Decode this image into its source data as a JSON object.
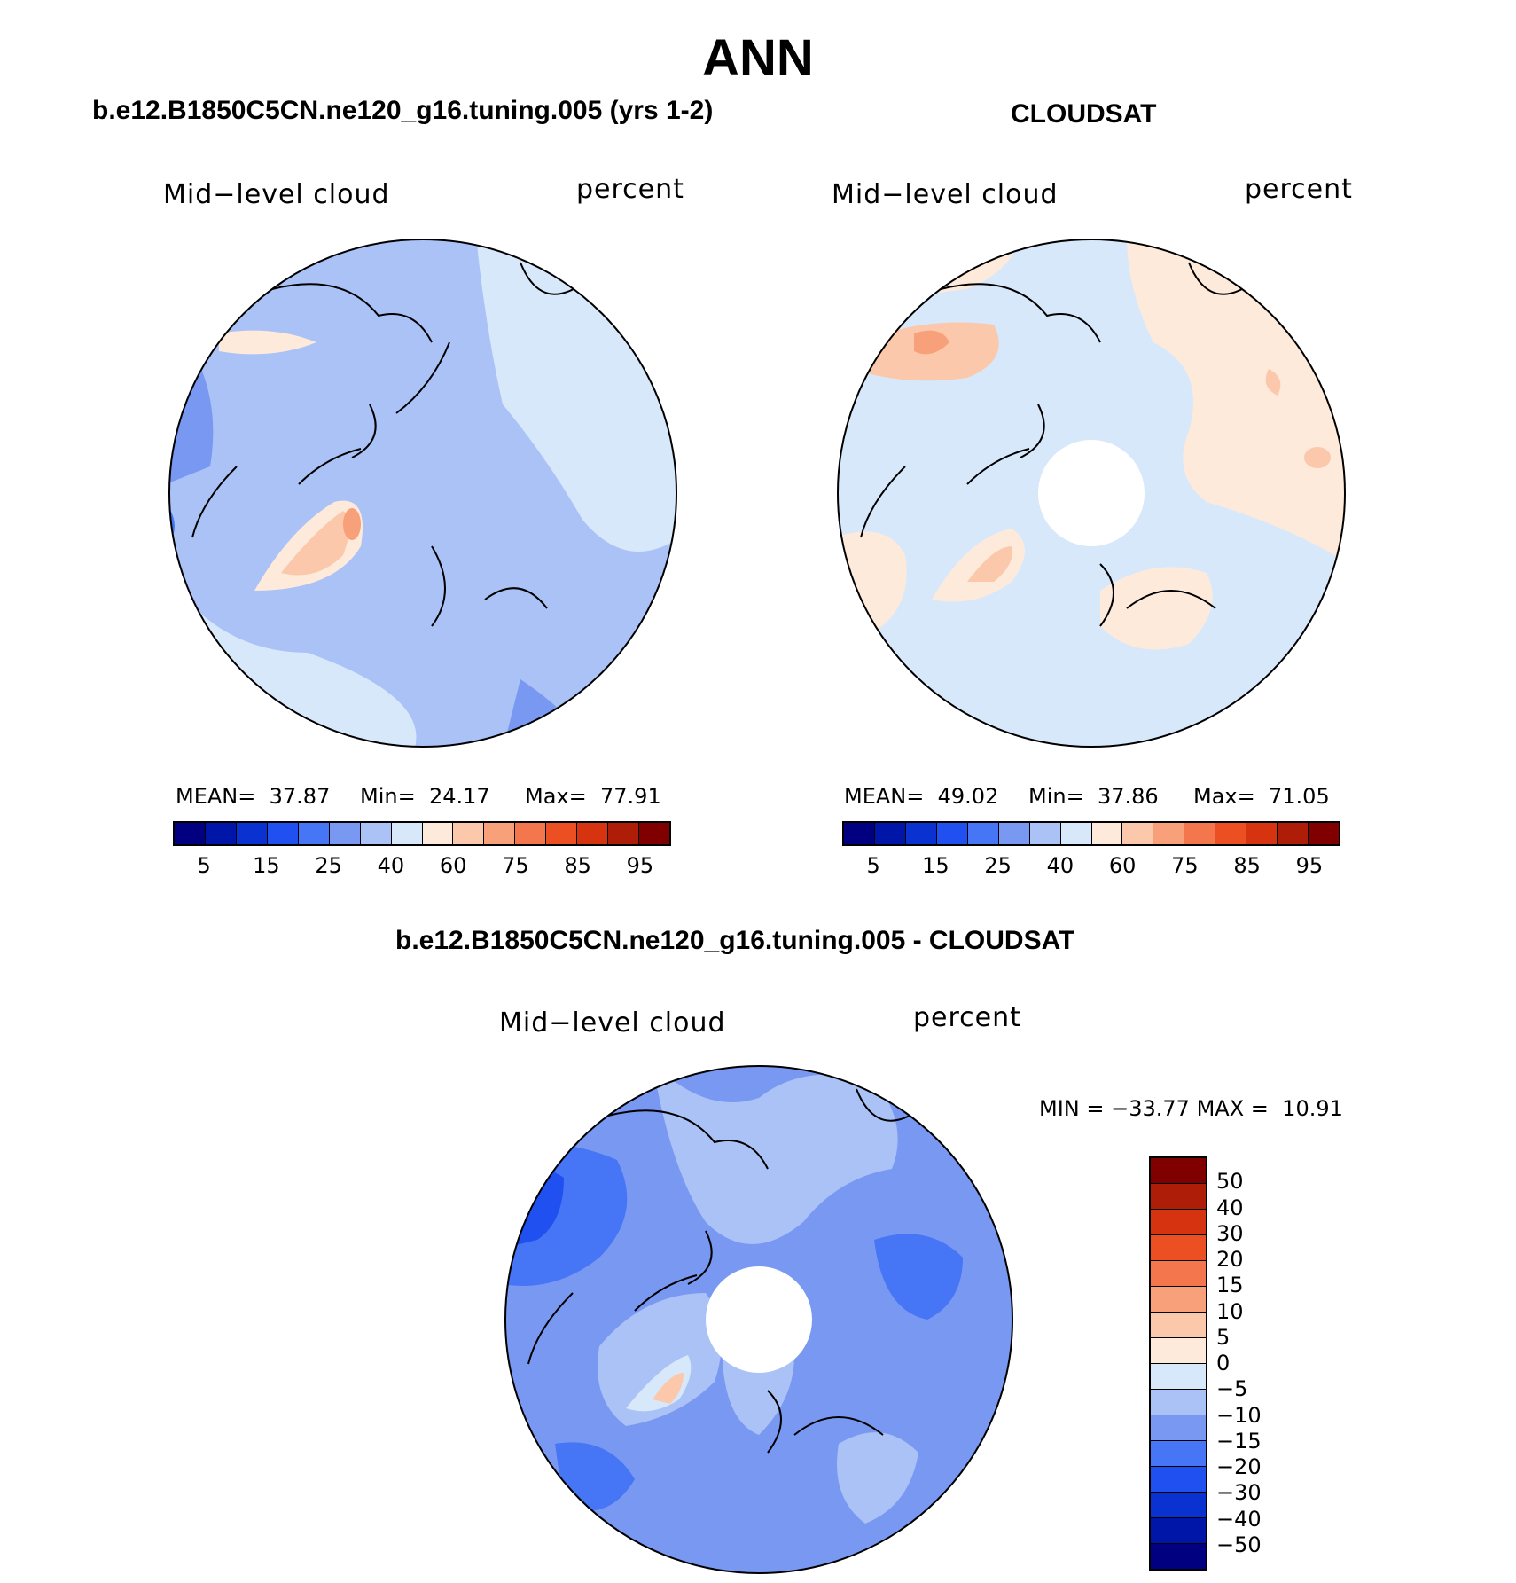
{
  "title": "ANN",
  "panels": {
    "model": {
      "case_title": "b.e12.B1850C5CN.ne120_g16.tuning.005 (yrs 1-2)",
      "variable": "Mid−level cloud",
      "units": "percent",
      "stats": {
        "mean_label": "MEAN=",
        "mean": "37.87",
        "min_label": "Min=",
        "min": "24.17",
        "max_label": "Max=",
        "max": "77.91"
      }
    },
    "obs": {
      "case_title": "CLOUDSAT",
      "variable": "Mid−level cloud",
      "units": "percent",
      "stats": {
        "mean_label": "MEAN=",
        "mean": "49.02",
        "min_label": "Min=",
        "min": "37.86",
        "max_label": "Max=",
        "max": "71.05"
      }
    },
    "diff": {
      "case_title": "b.e12.B1850C5CN.ne120_g16.tuning.005 - CLOUDSAT",
      "variable": "Mid−level cloud",
      "units": "percent",
      "stats": {
        "min_label": "MIN =",
        "min": "−33.77",
        "max_label": "MAX =",
        "max": "10.91"
      }
    }
  },
  "colorbar_abs": {
    "colors": [
      "#000080",
      "#0016a8",
      "#0a32d0",
      "#2050f0",
      "#4676f5",
      "#7898f2",
      "#aac2f6",
      "#d8e8fb",
      "#fdeadb",
      "#fcc8ab",
      "#f8a079",
      "#f3764c",
      "#ec4f21",
      "#d63411",
      "#ae1d08",
      "#800000"
    ],
    "tick_labels": [
      "5",
      "15",
      "25",
      "40",
      "60",
      "75",
      "85",
      "95"
    ]
  },
  "colorbar_diff": {
    "colors": [
      "#000080",
      "#0016a8",
      "#0a32d0",
      "#2050f0",
      "#4676f5",
      "#7898f2",
      "#aac2f6",
      "#d8e8fb",
      "#fdeadb",
      "#fcc8ab",
      "#f8a079",
      "#f3764c",
      "#ec4f21",
      "#d63411",
      "#ae1d08",
      "#800000"
    ],
    "tick_labels": [
      "−50",
      "−40",
      "−30",
      "−20",
      "−15",
      "−10",
      "−5",
      "0",
      "5",
      "10",
      "15",
      "20",
      "30",
      "40",
      "50"
    ]
  }
}
